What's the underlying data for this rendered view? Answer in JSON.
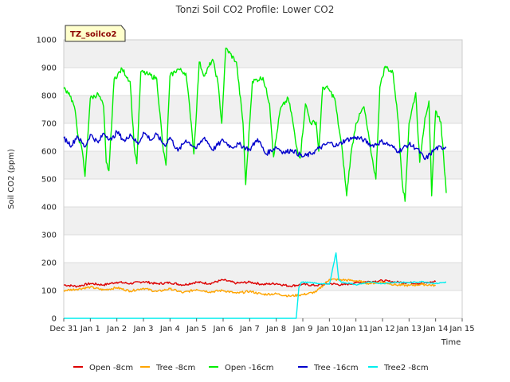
{
  "chart_data": {
    "type": "line",
    "title": "Tonzi Soil CO2 Profile: Lower CO2",
    "xlabel": "Time",
    "ylabel": "Soil CO2 (ppm)",
    "site_label": "TZ_soilco2",
    "ylim": [
      0,
      1000
    ],
    "yticks": [
      0,
      100,
      200,
      300,
      400,
      500,
      600,
      700,
      800,
      900,
      1000
    ],
    "xlim": [
      0,
      15
    ],
    "xticks": [
      {
        "day": 0,
        "label": "Dec 31"
      },
      {
        "day": 1,
        "label": "Jan 1"
      },
      {
        "day": 2,
        "label": "Jan 2"
      },
      {
        "day": 3,
        "label": "Jan 3"
      },
      {
        "day": 4,
        "label": "Jan 4"
      },
      {
        "day": 5,
        "label": "Jan 5"
      },
      {
        "day": 6,
        "label": "Jan 6"
      },
      {
        "day": 7,
        "label": "Jan 7"
      },
      {
        "day": 8,
        "label": "Jan 8"
      },
      {
        "day": 9,
        "label": "Jan 9"
      },
      {
        "day": 10,
        "label": "Jan 10"
      },
      {
        "day": 11,
        "label": "Jan 11"
      },
      {
        "day": 12,
        "label": "Jan 12"
      },
      {
        "day": 13,
        "label": "Jan 13"
      },
      {
        "day": 14,
        "label": "Jan 14"
      },
      {
        "day": 15,
        "label": "Jan 15"
      }
    ],
    "grid": true,
    "legend_position": "bottom",
    "series": [
      {
        "name": "Open -8cm",
        "color": "#dd0000",
        "x": [
          0,
          0.5,
          1,
          1.5,
          2,
          2.5,
          3,
          3.5,
          4,
          4.5,
          5,
          5.5,
          6,
          6.5,
          7,
          7.5,
          8,
          8.5,
          9,
          9.5,
          10,
          10.5,
          11,
          11.5,
          12,
          12.5,
          13,
          13.5,
          14
        ],
        "y": [
          120,
          115,
          125,
          120,
          130,
          125,
          132,
          124,
          128,
          120,
          130,
          125,
          138,
          126,
          130,
          122,
          125,
          116,
          122,
          118,
          125,
          120,
          128,
          132,
          135,
          130,
          128,
          125,
          132
        ]
      },
      {
        "name": "Tree -8cm",
        "color": "#ffa500",
        "x": [
          0,
          0.5,
          1,
          1.5,
          2,
          2.5,
          3,
          3.5,
          4,
          4.5,
          5,
          5.5,
          6,
          6.5,
          7,
          7.5,
          8,
          8.5,
          9,
          9.5,
          10,
          10.5,
          11,
          11.5,
          12,
          12.5,
          13,
          13.5,
          14
        ],
        "y": [
          100,
          105,
          112,
          102,
          110,
          98,
          108,
          96,
          106,
          92,
          104,
          95,
          100,
          90,
          97,
          86,
          88,
          80,
          85,
          95,
          140,
          138,
          135,
          125,
          130,
          120,
          118,
          122,
          118
        ]
      },
      {
        "name": "Open -16cm",
        "color": "#00ee00",
        "x": [
          0,
          0.2,
          0.4,
          0.55,
          0.7,
          0.8,
          1.0,
          1.3,
          1.5,
          1.6,
          1.7,
          1.9,
          2.2,
          2.5,
          2.65,
          2.75,
          2.9,
          3.2,
          3.5,
          3.75,
          3.85,
          4.0,
          4.3,
          4.6,
          4.8,
          4.9,
          5.1,
          5.3,
          5.6,
          5.8,
          5.95,
          6.1,
          6.5,
          6.75,
          6.85,
          7.1,
          7.5,
          7.75,
          7.9,
          8.15,
          8.45,
          8.6,
          8.75,
          8.9,
          9.1,
          9.3,
          9.5,
          9.6,
          9.75,
          9.95,
          10.2,
          10.5,
          10.65,
          10.8,
          11.0,
          11.3,
          11.6,
          11.75,
          11.9,
          12.1,
          12.4,
          12.6,
          12.75,
          12.85,
          13.0,
          13.25,
          13.4,
          13.6,
          13.75,
          13.85,
          14.0,
          14.2,
          14.4
        ],
        "y": [
          825,
          810,
          760,
          650,
          600,
          510,
          790,
          805,
          760,
          560,
          530,
          860,
          895,
          850,
          620,
          555,
          885,
          875,
          860,
          600,
          550,
          870,
          895,
          880,
          700,
          590,
          920,
          870,
          930,
          850,
          700,
          970,
          920,
          700,
          480,
          850,
          865,
          770,
          580,
          750,
          790,
          720,
          620,
          575,
          770,
          700,
          705,
          600,
          830,
          825,
          790,
          590,
          440,
          580,
          700,
          760,
          580,
          500,
          830,
          905,
          880,
          700,
          480,
          420,
          700,
          810,
          560,
          720,
          780,
          440,
          745,
          705,
          450
        ]
      },
      {
        "name": "Tree -16cm",
        "color": "#0000cc",
        "x": [
          0,
          0.3,
          0.5,
          0.8,
          1.0,
          1.3,
          1.5,
          1.8,
          2.0,
          2.3,
          2.5,
          2.8,
          3.0,
          3.3,
          3.5,
          3.8,
          4.0,
          4.3,
          4.6,
          5.0,
          5.3,
          5.6,
          6.0,
          6.3,
          6.6,
          7.0,
          7.3,
          7.6,
          8.0,
          8.3,
          8.6,
          9.0,
          9.3,
          9.6,
          10.0,
          10.3,
          10.6,
          11.0,
          11.3,
          11.6,
          12.0,
          12.3,
          12.6,
          13.0,
          13.3,
          13.6,
          14.0,
          14.4
        ],
        "y": [
          648,
          620,
          655,
          615,
          660,
          630,
          665,
          640,
          670,
          635,
          662,
          625,
          668,
          640,
          660,
          620,
          650,
          600,
          640,
          610,
          650,
          605,
          640,
          615,
          625,
          605,
          645,
          590,
          615,
          595,
          605,
          580,
          590,
          610,
          630,
          620,
          640,
          650,
          640,
          620,
          635,
          620,
          600,
          625,
          610,
          570,
          610,
          615
        ]
      },
      {
        "name": "Tree2 -8cm",
        "color": "#00eeee",
        "x": [
          0,
          1,
          2,
          3,
          4,
          5,
          6,
          7,
          8,
          8.75,
          8.85,
          8.95,
          9.3,
          9.6,
          10.0,
          10.25,
          10.35,
          10.45,
          10.8,
          11.0,
          11.5,
          12.0,
          12.5,
          13.0,
          13.5,
          14.0,
          14.4
        ],
        "y": [
          0,
          0,
          0,
          0,
          0,
          0,
          0,
          0,
          0,
          0,
          110,
          130,
          128,
          125,
          122,
          235,
          140,
          130,
          125,
          120,
          130,
          125,
          130,
          128,
          132,
          125,
          130
        ]
      }
    ]
  }
}
